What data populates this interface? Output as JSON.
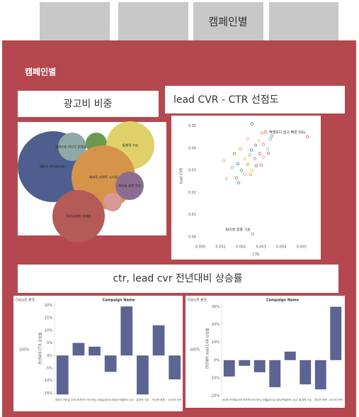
{
  "active_tab": "캠페인별",
  "section_title": "캠페인별",
  "comparison_title": "ctr, lead cvr 전년대비 상승률",
  "chart_data": [
    {
      "type": "packed_bubble",
      "title": "광고비 비중",
      "categories": [
        "해외적 커머셜서비스",
        "실습도로 이브도 런플로우",
        null,
        "통계적 가로",
        "예비투 전략투 시기회",
        "파브통 결합 가로",
        null,
        "여선호대변 회계없"
      ],
      "values": [
        2500,
        400,
        225,
        1156,
        2025,
        400,
        169,
        1369
      ],
      "colors": [
        "#4e5f8f",
        "#8fa9a7",
        "#6b9a4f",
        "#dfd06a",
        "#d5944a",
        "#8b6d92",
        "#d99799",
        "#b45a57"
      ]
    },
    {
      "type": "scatter",
      "title": "lead CVR - CTR 선점도",
      "x_label": "CTR",
      "y_label": "lead CVR",
      "x": [
        0.00255,
        0.00304,
        0.00322,
        0.00346,
        0.00353,
        0.0029,
        0.00311,
        0.00234,
        0.00273,
        0.00332,
        0.00252,
        0.00199,
        0.00294,
        0.00245,
        0.00168,
        0.0022,
        0.00269,
        0.00311,
        0.00336,
        0.00115,
        0.00185,
        0.00234,
        0.00276,
        0.00157,
        0.00203,
        0.00255,
        0.00301,
        0.0022,
        0.00178,
        0.00129,
        0.00189,
        0.00248,
        0.0053,
        0.00259
      ],
      "values": [
        0.051,
        0.0468,
        0.0474,
        0.0442,
        0.0455,
        0.0433,
        0.0417,
        0.0442,
        0.0413,
        0.0397,
        0.0391,
        0.0397,
        0.0375,
        0.0369,
        0.0375,
        0.0353,
        0.0353,
        0.0359,
        0.0378,
        0.0343,
        0.033,
        0.0327,
        0.0321,
        0.0314,
        0.0301,
        0.0301,
        0.0324,
        0.0282,
        0.0266,
        0.0263,
        0.0244,
        0.0282,
        0.0452,
        0.0013
      ],
      "colors": [
        "#4e79a7",
        "#f28e2b",
        "#e15759",
        "#76b7b2",
        "#59a14f",
        "#edc948",
        "#b07aa1",
        "#ff9da7",
        "#9c755f",
        "#bab0ac",
        "#4e79a7",
        "#f28e2b",
        "#e15759",
        "#76b7b2",
        "#59a14f",
        "#edc948",
        "#b07aa1",
        "#ff9da7",
        "#9c755f",
        "#bab0ac",
        "#4e79a7",
        "#f28e2b",
        "#e15759",
        "#76b7b2",
        "#59a14f",
        "#edc948",
        "#b07aa1",
        "#ff9da7",
        "#9c755f",
        "#bab0ac",
        "#4e79a7",
        "#f28e2b",
        "#e15759",
        "#b07aa1"
      ],
      "annotations": [
        {
          "text": "엑셀보다 쉽고 빠른 SQL",
          "point": 32
        },
        {
          "text": "파이썬 응용 기초",
          "point": 33
        }
      ],
      "xlim": [
        0,
        0.0055
      ],
      "xticks": [
        {
          "value": 0,
          "label": "0.000"
        },
        {
          "value": 0.001,
          "label": "0.001"
        },
        {
          "value": 0.002,
          "label": "0.002"
        },
        {
          "value": 0.003,
          "label": "0.003"
        },
        {
          "value": 0.004,
          "label": "0.004"
        },
        {
          "value": 0.005,
          "label": "0.005"
        }
      ],
      "ylim": [
        0,
        0.055
      ],
      "yticks": [
        {
          "value": 0,
          "label": "0.00"
        },
        0.01,
        0.02,
        0.03,
        0.04,
        0.05
      ]
    },
    {
      "type": "bar",
      "title": "Campaign Name",
      "corner_label": "Data로 분포",
      "side_label": "100%",
      "y_label": "전년대비 CTR 상승률",
      "color": "#5c6491",
      "categories": [
        "데이터 커머셜",
        "CRM 퍼포먼스",
        "머신러닝 모델",
        "실습으로 배우는",
        "엑셀보다 쉽고",
        "통계적 가로",
        "파이썬 응용",
        "ZOOM 전략"
      ],
      "values": [
        -15.5,
        5,
        3.5,
        -6.5,
        19.5,
        -15.5,
        12,
        -9.5
      ],
      "ylim": [
        -16,
        21.5
      ],
      "yticks": [
        {
          "value": 20,
          "label": "20%"
        },
        {
          "value": 15,
          "label": "15%"
        },
        {
          "value": 10,
          "label": "10%"
        },
        {
          "value": 5,
          "label": "5%"
        },
        {
          "value": 0,
          "label": "0%"
        },
        {
          "value": -5,
          "label": "-5%"
        },
        {
          "value": -10,
          "label": "-10%"
        },
        {
          "value": -15,
          "label": "-15%"
        }
      ]
    },
    {
      "type": "bar",
      "title": "Campaign Name",
      "corner_label": "Data로 분포",
      "side_label": "200%",
      "y_label": "전년대비 lead CVR 상승률",
      "color": "#5c6491",
      "categories": [
        "데이터 커머셜",
        "CRM 퍼포먼스",
        "머신러닝 모델",
        "실습으로 배우는",
        "엑셀보다 쉽고",
        "통계적 가로",
        "파이썬 응용",
        "ZOOM 전략"
      ],
      "values": [
        -9.2,
        -3.2,
        -6.8,
        -15.2,
        4.8,
        -13.6,
        -16.4,
        30
      ],
      "ylim": [
        -20,
        33
      ],
      "yticks": [
        {
          "value": 30,
          "label": "30%"
        },
        {
          "value": 20,
          "label": "20%"
        },
        {
          "value": 10,
          "label": "10%"
        },
        {
          "value": 0,
          "label": "0%"
        },
        {
          "value": -10,
          "label": "-10%"
        },
        {
          "value": -20,
          "label": "-20%"
        }
      ]
    }
  ]
}
